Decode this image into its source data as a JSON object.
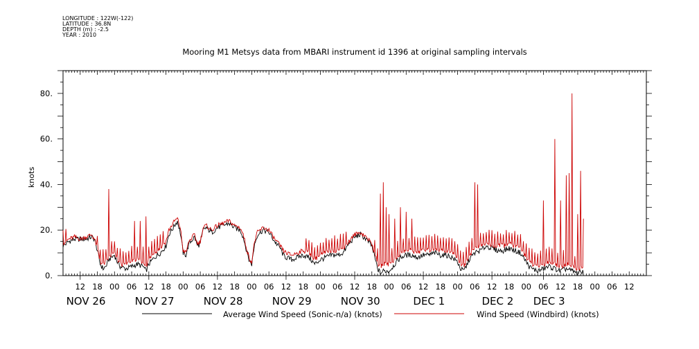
{
  "header": {
    "longitude": "LONGITUDE : 122W(-122)",
    "latitude": "LATITUDE : 36.8N",
    "depth": "DEPTH (m) : -2.5",
    "year": "YEAR : 2010"
  },
  "chart_data": {
    "type": "line",
    "title": "Mooring M1 Metsys data from MBARI instrument id 1396 at original sampling intervals",
    "ylabel": "knots",
    "xlabel": "",
    "x_unit": "hours since NOV 25 18:00 (2010)",
    "xlim": [
      0,
      204
    ],
    "ylim": [
      0,
      90
    ],
    "y_ticks": [
      0,
      20,
      40,
      60,
      80
    ],
    "y_tick_labels": [
      "0.",
      "20.",
      "40.",
      "60.",
      "80."
    ],
    "hour_tick_labels": [
      {
        "x": 6,
        "label": "12"
      },
      {
        "x": 12,
        "label": "18"
      },
      {
        "x": 18,
        "label": "00"
      },
      {
        "x": 24,
        "label": "06"
      },
      {
        "x": 30,
        "label": "12"
      },
      {
        "x": 36,
        "label": "18"
      },
      {
        "x": 42,
        "label": "00"
      },
      {
        "x": 48,
        "label": "06"
      },
      {
        "x": 54,
        "label": "12"
      },
      {
        "x": 60,
        "label": "18"
      },
      {
        "x": 66,
        "label": "00"
      },
      {
        "x": 72,
        "label": "06"
      },
      {
        "x": 78,
        "label": "12"
      },
      {
        "x": 84,
        "label": "18"
      },
      {
        "x": 90,
        "label": "00"
      },
      {
        "x": 96,
        "label": "06"
      },
      {
        "x": 102,
        "label": "12"
      },
      {
        "x": 108,
        "label": "18"
      },
      {
        "x": 114,
        "label": "00"
      },
      {
        "x": 120,
        "label": "06"
      },
      {
        "x": 126,
        "label": "12"
      },
      {
        "x": 132,
        "label": "18"
      },
      {
        "x": 138,
        "label": "00"
      },
      {
        "x": 144,
        "label": "06"
      },
      {
        "x": 150,
        "label": "12"
      },
      {
        "x": 156,
        "label": "18"
      },
      {
        "x": 162,
        "label": "00"
      },
      {
        "x": 168,
        "label": "06"
      },
      {
        "x": 174,
        "label": "12"
      },
      {
        "x": 180,
        "label": "18"
      },
      {
        "x": 186,
        "label": "00"
      },
      {
        "x": 192,
        "label": "06"
      },
      {
        "x": 198,
        "label": "12"
      },
      {
        "x": 204,
        "label": "18"
      }
    ],
    "hour_tick_labels_shown": [
      "12",
      "18",
      "00",
      "06",
      "12",
      "18",
      "00",
      "06",
      "12",
      "18",
      "00",
      "06",
      "12",
      "18",
      "00",
      "06",
      "12",
      "18",
      "00",
      "06",
      "12",
      "18",
      "00",
      "06",
      "12",
      "18",
      "00",
      "06",
      "12",
      "18",
      "00",
      "06"
    ],
    "day_labels": [
      {
        "x": 8,
        "label": "NOV 26"
      },
      {
        "x": 32,
        "label": "NOV 27"
      },
      {
        "x": 56,
        "label": "NOV 28"
      },
      {
        "x": 80,
        "label": "NOV 29"
      },
      {
        "x": 104,
        "label": "NOV 30"
      },
      {
        "x": 128,
        "label": "DEC  1"
      },
      {
        "x": 152,
        "label": "DEC  2"
      },
      {
        "x": 170,
        "label": "DEC  3"
      }
    ],
    "series": [
      {
        "name": "Average Wind Speed (Sonic-n/a) (knots)",
        "color": "#000000",
        "points": [
          [
            0,
            13
          ],
          [
            2,
            15
          ],
          [
            4,
            16
          ],
          [
            6,
            16
          ],
          [
            8,
            16
          ],
          [
            10,
            17
          ],
          [
            11,
            16
          ],
          [
            12,
            11
          ],
          [
            13,
            5
          ],
          [
            14,
            3
          ],
          [
            15,
            4
          ],
          [
            16,
            7
          ],
          [
            18,
            9
          ],
          [
            19,
            6
          ],
          [
            20,
            4
          ],
          [
            22,
            3
          ],
          [
            24,
            4
          ],
          [
            26,
            5
          ],
          [
            28,
            4
          ],
          [
            29,
            2
          ],
          [
            30,
            5
          ],
          [
            32,
            8
          ],
          [
            34,
            10
          ],
          [
            36,
            13
          ],
          [
            37,
            18
          ],
          [
            38,
            20
          ],
          [
            39,
            22
          ],
          [
            40,
            24
          ],
          [
            41,
            19
          ],
          [
            42,
            10
          ],
          [
            43,
            9
          ],
          [
            44,
            14
          ],
          [
            46,
            17
          ],
          [
            47,
            13
          ],
          [
            48,
            14
          ],
          [
            49,
            20
          ],
          [
            50,
            21
          ],
          [
            52,
            19
          ],
          [
            54,
            21
          ],
          [
            56,
            22
          ],
          [
            58,
            23
          ],
          [
            60,
            21
          ],
          [
            62,
            20
          ],
          [
            63,
            17
          ],
          [
            64,
            12
          ],
          [
            65,
            7
          ],
          [
            66,
            5
          ],
          [
            67,
            14
          ],
          [
            68,
            18
          ],
          [
            70,
            20
          ],
          [
            72,
            19
          ],
          [
            74,
            15
          ],
          [
            76,
            12
          ],
          [
            77,
            9
          ],
          [
            78,
            8
          ],
          [
            80,
            7
          ],
          [
            82,
            8
          ],
          [
            84,
            9
          ],
          [
            86,
            8
          ],
          [
            88,
            5
          ],
          [
            90,
            7
          ],
          [
            92,
            8
          ],
          [
            94,
            9
          ],
          [
            96,
            9
          ],
          [
            98,
            10
          ],
          [
            100,
            14
          ],
          [
            102,
            17
          ],
          [
            104,
            18
          ],
          [
            106,
            16
          ],
          [
            108,
            13
          ],
          [
            109,
            8
          ],
          [
            110,
            3
          ],
          [
            111,
            1
          ],
          [
            112,
            2
          ],
          [
            114,
            2
          ],
          [
            116,
            5
          ],
          [
            118,
            8
          ],
          [
            120,
            9
          ],
          [
            122,
            9
          ],
          [
            124,
            8
          ],
          [
            126,
            9
          ],
          [
            128,
            9
          ],
          [
            130,
            10
          ],
          [
            132,
            9
          ],
          [
            134,
            9
          ],
          [
            136,
            8
          ],
          [
            138,
            6
          ],
          [
            139,
            3
          ],
          [
            140,
            2
          ],
          [
            141,
            4
          ],
          [
            142,
            7
          ],
          [
            144,
            10
          ],
          [
            146,
            11
          ],
          [
            148,
            13
          ],
          [
            150,
            12
          ],
          [
            152,
            11
          ],
          [
            154,
            11
          ],
          [
            156,
            12
          ],
          [
            158,
            11
          ],
          [
            160,
            10
          ],
          [
            162,
            6
          ],
          [
            163,
            4
          ],
          [
            164,
            3
          ],
          [
            166,
            2
          ],
          [
            168,
            3
          ],
          [
            170,
            4
          ],
          [
            172,
            3
          ],
          [
            174,
            2
          ],
          [
            176,
            3
          ],
          [
            178,
            2
          ],
          [
            180,
            1
          ],
          [
            182,
            2
          ]
        ]
      },
      {
        "name": "Wind Speed (Windbird) (knots)",
        "color": "#cc0000",
        "points": [
          [
            0,
            14
          ],
          [
            2,
            16
          ],
          [
            4,
            17
          ],
          [
            6,
            16
          ],
          [
            8,
            17
          ],
          [
            10,
            18
          ],
          [
            11,
            16
          ],
          [
            12,
            12
          ],
          [
            13,
            6
          ],
          [
            14,
            5
          ],
          [
            15,
            6
          ],
          [
            16,
            8
          ],
          [
            18,
            10
          ],
          [
            19,
            7
          ],
          [
            20,
            5
          ],
          [
            22,
            5
          ],
          [
            24,
            6
          ],
          [
            26,
            7
          ],
          [
            28,
            6
          ],
          [
            29,
            4
          ],
          [
            30,
            7
          ],
          [
            32,
            10
          ],
          [
            34,
            12
          ],
          [
            36,
            15
          ],
          [
            37,
            20
          ],
          [
            38,
            22
          ],
          [
            39,
            24
          ],
          [
            40,
            25
          ],
          [
            41,
            21
          ],
          [
            42,
            11
          ],
          [
            43,
            10
          ],
          [
            44,
            15
          ],
          [
            46,
            18
          ],
          [
            47,
            14
          ],
          [
            48,
            15
          ],
          [
            49,
            21
          ],
          [
            50,
            22
          ],
          [
            52,
            20
          ],
          [
            54,
            22
          ],
          [
            56,
            23
          ],
          [
            58,
            24
          ],
          [
            60,
            22
          ],
          [
            62,
            21
          ],
          [
            63,
            18
          ],
          [
            64,
            13
          ],
          [
            65,
            8
          ],
          [
            66,
            6
          ],
          [
            67,
            15
          ],
          [
            68,
            19
          ],
          [
            70,
            21
          ],
          [
            72,
            20
          ],
          [
            74,
            16
          ],
          [
            76,
            13
          ],
          [
            77,
            11
          ],
          [
            78,
            10
          ],
          [
            80,
            9
          ],
          [
            82,
            10
          ],
          [
            84,
            11
          ],
          [
            86,
            10
          ],
          [
            88,
            7
          ],
          [
            90,
            9
          ],
          [
            92,
            10
          ],
          [
            94,
            11
          ],
          [
            96,
            11
          ],
          [
            98,
            12
          ],
          [
            100,
            15
          ],
          [
            102,
            18
          ],
          [
            104,
            19
          ],
          [
            106,
            17
          ],
          [
            108,
            14
          ],
          [
            109,
            10
          ],
          [
            110,
            5
          ],
          [
            111,
            4
          ],
          [
            112,
            5
          ],
          [
            114,
            5
          ],
          [
            116,
            7
          ],
          [
            118,
            10
          ],
          [
            120,
            11
          ],
          [
            122,
            11
          ],
          [
            124,
            10
          ],
          [
            126,
            11
          ],
          [
            128,
            11
          ],
          [
            130,
            12
          ],
          [
            132,
            11
          ],
          [
            134,
            11
          ],
          [
            136,
            10
          ],
          [
            138,
            8
          ],
          [
            139,
            5
          ],
          [
            140,
            4
          ],
          [
            141,
            6
          ],
          [
            142,
            9
          ],
          [
            144,
            12
          ],
          [
            146,
            13
          ],
          [
            148,
            14
          ],
          [
            150,
            13
          ],
          [
            152,
            13
          ],
          [
            154,
            13
          ],
          [
            156,
            14
          ],
          [
            158,
            13
          ],
          [
            160,
            12
          ],
          [
            162,
            8
          ],
          [
            163,
            6
          ],
          [
            164,
            5
          ],
          [
            166,
            4
          ],
          [
            168,
            5
          ],
          [
            170,
            6
          ],
          [
            172,
            5
          ],
          [
            174,
            4
          ],
          [
            176,
            5
          ],
          [
            178,
            4
          ],
          [
            180,
            3
          ],
          [
            182,
            4
          ]
        ],
        "spikes": [
          [
            16,
            38
          ],
          [
            25,
            24
          ],
          [
            27,
            24
          ],
          [
            29,
            26
          ],
          [
            111,
            36
          ],
          [
            112,
            41
          ],
          [
            113,
            30
          ],
          [
            114,
            27
          ],
          [
            116,
            25
          ],
          [
            118,
            30
          ],
          [
            120,
            28
          ],
          [
            122,
            25
          ],
          [
            144,
            41
          ],
          [
            145,
            40
          ],
          [
            168,
            33
          ],
          [
            172,
            60
          ],
          [
            174,
            33
          ],
          [
            176,
            44
          ],
          [
            177,
            45
          ],
          [
            178,
            80
          ],
          [
            180,
            27
          ],
          [
            181,
            46
          ],
          [
            182,
            25
          ]
        ],
        "spike_interval_hours": 1,
        "spike_extra": 5
      }
    ],
    "legend": [
      {
        "label": "Average Wind Speed (Sonic-n/a) (knots)",
        "color": "#000000"
      },
      {
        "label": "Wind Speed (Windbird) (knots)",
        "color": "#cc0000"
      }
    ],
    "legend_placement": "bottom",
    "grid": false
  }
}
